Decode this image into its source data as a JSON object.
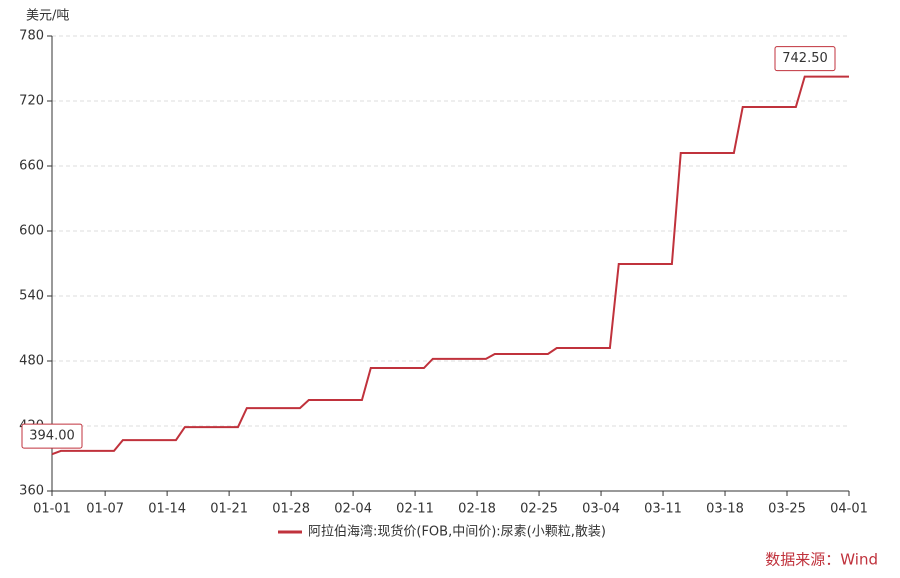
{
  "chart_data": {
    "type": "line",
    "y_label": "美元/吨",
    "source": "数据来源：Wind",
    "x": [
      "01-01",
      "01-02",
      "01-08",
      "01-09",
      "01-15",
      "01-16",
      "01-22",
      "01-23",
      "01-29",
      "01-30",
      "02-05",
      "02-06",
      "02-12",
      "02-13",
      "02-19",
      "02-20",
      "02-26",
      "02-27",
      "03-05",
      "03-06",
      "03-12",
      "03-13",
      "03-19",
      "03-20",
      "03-26",
      "03-27",
      "04-01"
    ],
    "series": [
      {
        "name": "阿拉伯海湾:现货价(FOB,中间价):尿素(小颗粒,散装)",
        "color": "#c0323c",
        "values": [
          394,
          397,
          397,
          407,
          407,
          419,
          419,
          436.5,
          436.5,
          444,
          444,
          473.5,
          473.5,
          482,
          482,
          486.5,
          486.5,
          492,
          492,
          569.5,
          569.5,
          672,
          672,
          714.5,
          714.5,
          742.5,
          742.5
        ],
        "value_labels": [
          "394.00",
          null,
          null,
          null,
          null,
          null,
          null,
          null,
          null,
          null,
          null,
          null,
          null,
          null,
          null,
          null,
          null,
          null,
          null,
          null,
          null,
          null,
          null,
          null,
          null,
          null,
          "742.50"
        ]
      }
    ],
    "xlim": [
      "01-01",
      "04-01"
    ],
    "xticks": [
      "01-01",
      "01-07",
      "01-14",
      "01-21",
      "01-28",
      "02-04",
      "02-11",
      "02-18",
      "02-25",
      "03-04",
      "03-11",
      "03-18",
      "03-25",
      "04-01"
    ],
    "ylim": [
      360,
      780
    ],
    "yticks": [
      360,
      420,
      480,
      540,
      600,
      660,
      720,
      780
    ],
    "grid": true,
    "legend": "bottom"
  }
}
